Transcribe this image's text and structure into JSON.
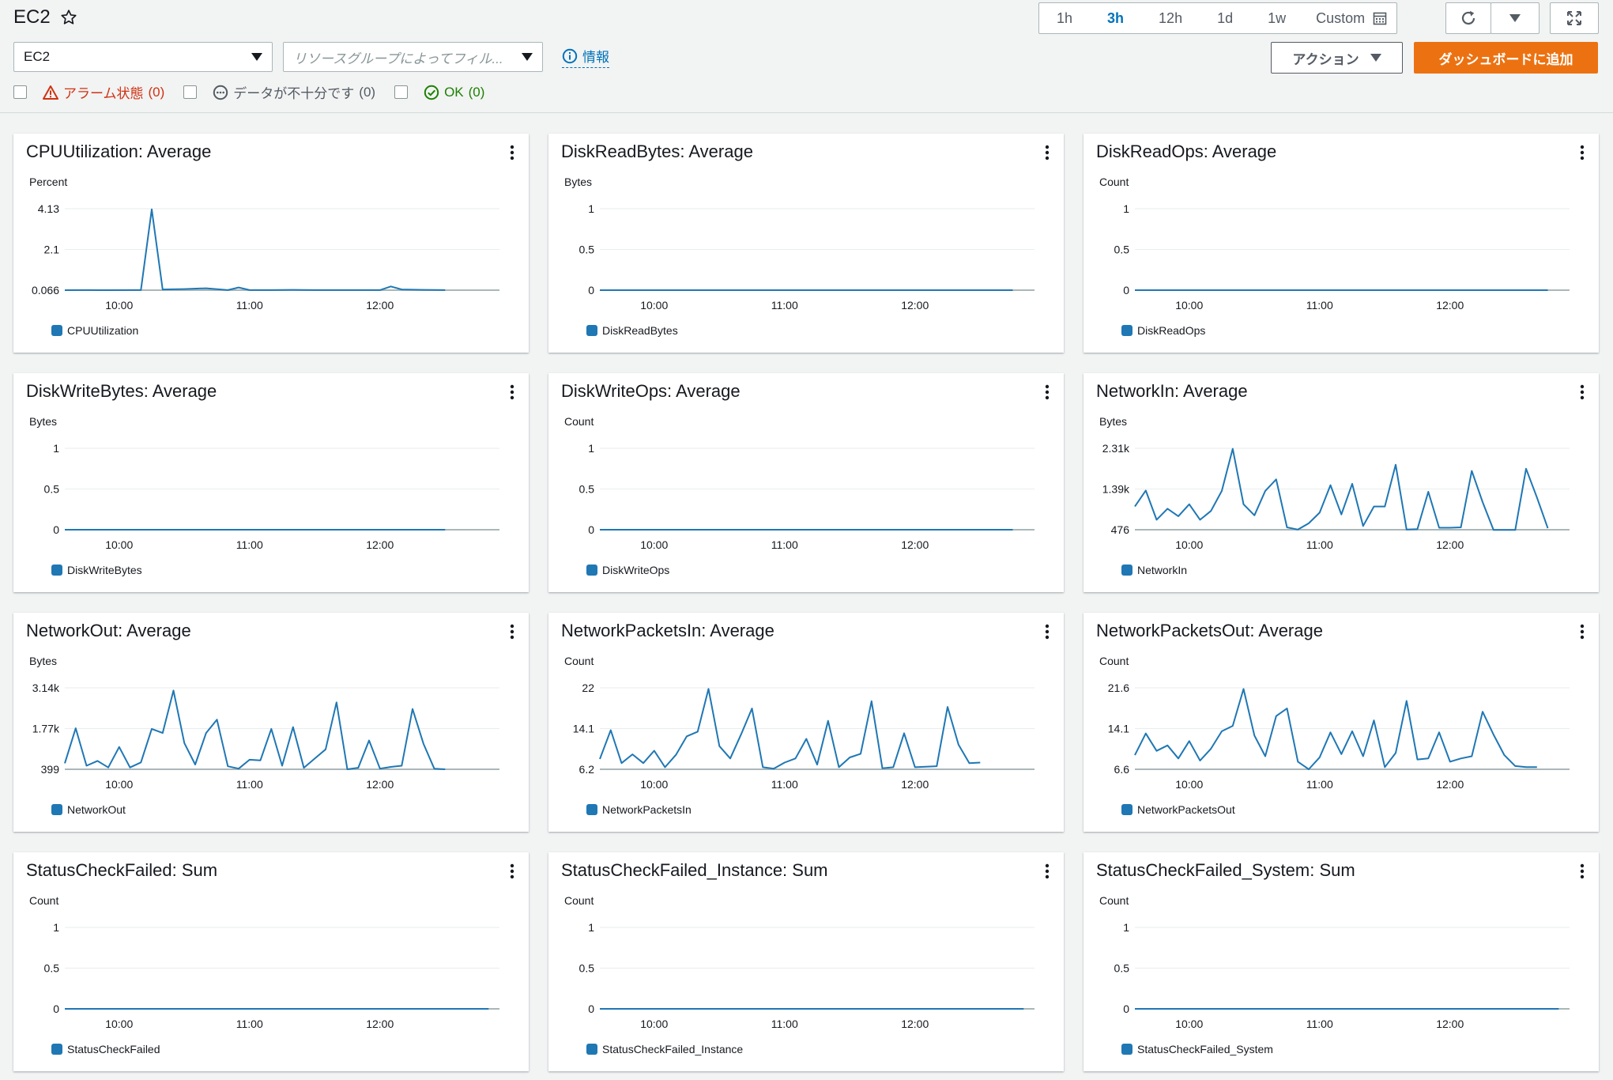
{
  "header": {
    "title": "EC2",
    "dashboard_select": "EC2",
    "resource_group_placeholder": "リソースグループによってフィル...",
    "info_label": "情報",
    "filters": [
      {
        "label": "アラーム状態",
        "count": "(0)"
      },
      {
        "label": "データが不十分です",
        "count": "(0)"
      },
      {
        "label": "OK",
        "count": "(0)"
      }
    ],
    "time_ranges": [
      "1h",
      "3h",
      "12h",
      "1d",
      "1w"
    ],
    "active_time_range": "3h",
    "custom_label": "Custom",
    "actions_label": "アクション",
    "add_to_dashboard_label": "ダッシュボードに追加"
  },
  "colors": {
    "series": "#1f77b4",
    "accent_orange": "#ec7211",
    "link_blue": "#0073bb",
    "alarm_red": "#d13212",
    "ok_green": "#1d8102"
  },
  "chart_data": [
    {
      "type": "line",
      "title": "CPUUtilization: Average",
      "ylabel": "Percent",
      "yticks": [
        "4.13",
        "2.1",
        "0.066"
      ],
      "ylim": [
        0.066,
        4.13
      ],
      "xticks": [
        "10:00",
        "11:00",
        "12:00"
      ],
      "xlim": [
        "09:35",
        "12:55"
      ],
      "series": [
        {
          "name": "CPUUtilization",
          "x": [
            "09:35",
            "09:45",
            "09:55",
            "10:05",
            "10:10",
            "10:15",
            "10:20",
            "10:30",
            "10:40",
            "10:50",
            "10:55",
            "11:00",
            "11:10",
            "11:20",
            "11:30",
            "11:40",
            "11:50",
            "12:00",
            "12:05",
            "12:10",
            "12:20",
            "12:30"
          ],
          "values": [
            0.066,
            0.07,
            0.066,
            0.07,
            0.07,
            4.1,
            0.1,
            0.12,
            0.16,
            0.07,
            0.2,
            0.07,
            0.07,
            0.08,
            0.07,
            0.07,
            0.07,
            0.07,
            0.25,
            0.1,
            0.08,
            0.07
          ]
        }
      ]
    },
    {
      "type": "line",
      "title": "DiskReadBytes: Average",
      "ylabel": "Bytes",
      "yticks": [
        "1",
        "0.5",
        "0"
      ],
      "ylim": [
        0,
        1
      ],
      "xticks": [
        "10:00",
        "11:00",
        "12:00"
      ],
      "xlim": [
        "09:35",
        "12:55"
      ],
      "series": [
        {
          "name": "DiskReadBytes",
          "x": [
            "09:35",
            "12:45"
          ],
          "values": [
            0,
            0
          ]
        }
      ]
    },
    {
      "type": "line",
      "title": "DiskReadOps: Average",
      "ylabel": "Count",
      "yticks": [
        "1",
        "0.5",
        "0"
      ],
      "ylim": [
        0,
        1
      ],
      "xticks": [
        "10:00",
        "11:00",
        "12:00"
      ],
      "xlim": [
        "09:35",
        "12:55"
      ],
      "series": [
        {
          "name": "DiskReadOps",
          "x": [
            "09:35",
            "12:45"
          ],
          "values": [
            0,
            0
          ]
        }
      ]
    },
    {
      "type": "line",
      "title": "DiskWriteBytes: Average",
      "ylabel": "Bytes",
      "yticks": [
        "1",
        "0.5",
        "0"
      ],
      "ylim": [
        0,
        1
      ],
      "xticks": [
        "10:00",
        "11:00",
        "12:00"
      ],
      "xlim": [
        "09:35",
        "12:55"
      ],
      "series": [
        {
          "name": "DiskWriteBytes",
          "x": [
            "09:35",
            "12:30"
          ],
          "values": [
            0,
            0
          ]
        }
      ]
    },
    {
      "type": "line",
      "title": "DiskWriteOps: Average",
      "ylabel": "Count",
      "yticks": [
        "1",
        "0.5",
        "0"
      ],
      "ylim": [
        0,
        1
      ],
      "xticks": [
        "10:00",
        "11:00",
        "12:00"
      ],
      "xlim": [
        "09:35",
        "12:55"
      ],
      "series": [
        {
          "name": "DiskWriteOps",
          "x": [
            "09:35",
            "12:45"
          ],
          "values": [
            0,
            0
          ]
        }
      ]
    },
    {
      "type": "line",
      "title": "NetworkIn: Average",
      "ylabel": "Bytes",
      "yticks": [
        "2.31k",
        "1.39k",
        "476"
      ],
      "ylim": [
        476,
        2310
      ],
      "xticks": [
        "10:00",
        "11:00",
        "12:00"
      ],
      "xlim": [
        "09:35",
        "12:55"
      ],
      "series": [
        {
          "name": "NetworkIn",
          "x": [
            "09:35",
            "09:40",
            "09:45",
            "09:50",
            "09:55",
            "10:00",
            "10:05",
            "10:10",
            "10:15",
            "10:20",
            "10:25",
            "10:30",
            "10:35",
            "10:40",
            "10:45",
            "10:50",
            "10:55",
            "11:00",
            "11:05",
            "11:10",
            "11:15",
            "11:20",
            "11:25",
            "11:30",
            "11:35",
            "11:40",
            "11:45",
            "11:50",
            "11:55",
            "12:00",
            "12:05",
            "12:10",
            "12:15",
            "12:20",
            "12:25",
            "12:30",
            "12:35",
            "12:40",
            "12:45"
          ],
          "values": [
            1000,
            1360,
            700,
            950,
            780,
            1050,
            700,
            900,
            1350,
            2300,
            1050,
            800,
            1350,
            1610,
            530,
            480,
            620,
            860,
            1480,
            820,
            1510,
            560,
            1000,
            1000,
            1940,
            480,
            490,
            1330,
            520,
            520,
            530,
            1800,
            1100,
            470,
            470,
            470,
            1850,
            1200,
            510
          ]
        }
      ]
    },
    {
      "type": "line",
      "title": "NetworkOut: Average",
      "ylabel": "Bytes",
      "yticks": [
        "3.14k",
        "1.77k",
        "399"
      ],
      "ylim": [
        399,
        3140
      ],
      "xticks": [
        "10:00",
        "11:00",
        "12:00"
      ],
      "xlim": [
        "09:35",
        "12:55"
      ],
      "series": [
        {
          "name": "NetworkOut",
          "x": [
            "09:35",
            "09:40",
            "09:45",
            "09:50",
            "09:55",
            "10:00",
            "10:05",
            "10:10",
            "10:15",
            "10:20",
            "10:25",
            "10:30",
            "10:35",
            "10:40",
            "10:45",
            "10:50",
            "10:55",
            "11:00",
            "11:05",
            "11:10",
            "11:15",
            "11:20",
            "11:25",
            "11:30",
            "11:35",
            "11:40",
            "11:45",
            "11:50",
            "11:55",
            "12:00",
            "12:05",
            "12:10",
            "12:15",
            "12:20",
            "12:25",
            "12:30"
          ],
          "values": [
            600,
            1780,
            520,
            680,
            460,
            1150,
            460,
            630,
            1760,
            1620,
            3050,
            1280,
            560,
            1620,
            2070,
            500,
            420,
            720,
            700,
            1760,
            520,
            1820,
            450,
            760,
            1070,
            2650,
            400,
            450,
            1370,
            420,
            480,
            520,
            2430,
            1260,
            420,
            400
          ]
        }
      ]
    },
    {
      "type": "line",
      "title": "NetworkPacketsIn: Average",
      "ylabel": "Count",
      "yticks": [
        "22",
        "14.1",
        "6.2"
      ],
      "ylim": [
        6.2,
        22
      ],
      "xticks": [
        "10:00",
        "11:00",
        "12:00"
      ],
      "xlim": [
        "09:35",
        "12:55"
      ],
      "series": [
        {
          "name": "NetworkPacketsIn",
          "x": [
            "09:35",
            "09:40",
            "09:45",
            "09:50",
            "09:55",
            "10:00",
            "10:05",
            "10:10",
            "10:15",
            "10:20",
            "10:25",
            "10:30",
            "10:35",
            "10:40",
            "10:45",
            "10:50",
            "10:55",
            "11:00",
            "11:05",
            "11:10",
            "11:15",
            "11:20",
            "11:25",
            "11:30",
            "11:35",
            "11:40",
            "11:45",
            "11:50",
            "11:55",
            "12:00",
            "12:05",
            "12:10",
            "12:15",
            "12:20",
            "12:25",
            "12:30"
          ],
          "values": [
            8.2,
            13.8,
            7.4,
            9.1,
            7.4,
            9.8,
            6.6,
            9.0,
            12.6,
            13.5,
            21.8,
            10.7,
            8.3,
            13.0,
            18.0,
            6.6,
            6.3,
            7.5,
            8.3,
            12.1,
            7.1,
            15.6,
            6.6,
            8.5,
            9.2,
            19.4,
            6.4,
            6.6,
            13.2,
            6.6,
            6.7,
            6.8,
            18.3,
            11.0,
            7.4,
            7.5
          ]
        }
      ]
    },
    {
      "type": "line",
      "title": "NetworkPacketsOut: Average",
      "ylabel": "Count",
      "yticks": [
        "21.6",
        "14.1",
        "6.6"
      ],
      "ylim": [
        6.6,
        21.6
      ],
      "xticks": [
        "10:00",
        "11:00",
        "12:00"
      ],
      "xlim": [
        "09:35",
        "12:55"
      ],
      "series": [
        {
          "name": "NetworkPacketsOut",
          "x": [
            "09:35",
            "09:40",
            "09:45",
            "09:50",
            "09:55",
            "10:00",
            "10:05",
            "10:10",
            "10:15",
            "10:20",
            "10:25",
            "10:30",
            "10:35",
            "10:40",
            "10:45",
            "10:50",
            "10:55",
            "11:00",
            "11:05",
            "11:10",
            "11:15",
            "11:20",
            "11:25",
            "11:30",
            "11:35",
            "11:40",
            "11:45",
            "11:50",
            "11:55",
            "12:00",
            "12:05",
            "12:10",
            "12:15",
            "12:20",
            "12:25",
            "12:30",
            "12:35",
            "12:40"
          ],
          "values": [
            9.2,
            13.2,
            10.0,
            11.0,
            8.6,
            11.8,
            8.2,
            10.4,
            13.6,
            14.6,
            21.4,
            12.8,
            9.0,
            16.4,
            17.8,
            8.0,
            6.6,
            8.8,
            13.4,
            9.4,
            13.6,
            9.0,
            15.6,
            7.0,
            9.6,
            19.2,
            8.4,
            8.6,
            13.4,
            8.0,
            8.6,
            9.0,
            17.2,
            13.0,
            9.2,
            7.2,
            7.0,
            7.0
          ]
        }
      ]
    },
    {
      "type": "line",
      "title": "StatusCheckFailed: Sum",
      "ylabel": "Count",
      "yticks": [
        "1",
        "0.5",
        "0"
      ],
      "ylim": [
        0,
        1
      ],
      "xticks": [
        "10:00",
        "11:00",
        "12:00"
      ],
      "xlim": [
        "09:35",
        "12:55"
      ],
      "series": [
        {
          "name": "StatusCheckFailed",
          "x": [
            "09:35",
            "12:50"
          ],
          "values": [
            0,
            0
          ]
        }
      ]
    },
    {
      "type": "line",
      "title": "StatusCheckFailed_Instance: Sum",
      "ylabel": "Count",
      "yticks": [
        "1",
        "0.5",
        "0"
      ],
      "ylim": [
        0,
        1
      ],
      "xticks": [
        "10:00",
        "11:00",
        "12:00"
      ],
      "xlim": [
        "09:35",
        "12:55"
      ],
      "series": [
        {
          "name": "StatusCheckFailed_Instance",
          "x": [
            "09:35",
            "12:50"
          ],
          "values": [
            0,
            0
          ]
        }
      ]
    },
    {
      "type": "line",
      "title": "StatusCheckFailed_System: Sum",
      "ylabel": "Count",
      "yticks": [
        "1",
        "0.5",
        "0"
      ],
      "ylim": [
        0,
        1
      ],
      "xticks": [
        "10:00",
        "11:00",
        "12:00"
      ],
      "xlim": [
        "09:35",
        "12:55"
      ],
      "series": [
        {
          "name": "StatusCheckFailed_System",
          "x": [
            "09:35",
            "12:50"
          ],
          "values": [
            0,
            0
          ]
        }
      ]
    }
  ]
}
